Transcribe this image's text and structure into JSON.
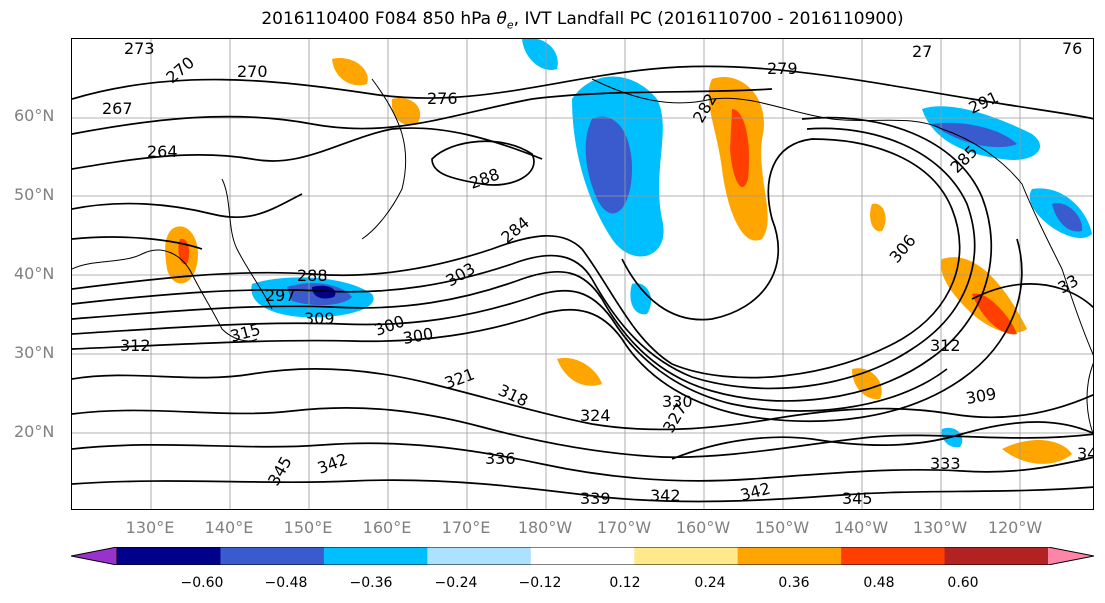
{
  "title": {
    "run": "2016110400 F084 850 hPa",
    "variable_symbol": "θ",
    "variable_subscript": "e",
    "rest": ", IVT Landfall PC (2016110700 - 2016110900)"
  },
  "lat_labels": [
    "60°N",
    "50°N",
    "40°N",
    "30°N",
    "20°N"
  ],
  "lon_labels": [
    "130°E",
    "140°E",
    "150°E",
    "160°E",
    "170°E",
    "180°W",
    "170°W",
    "160°W",
    "150°W",
    "140°W",
    "130°W",
    "120°W"
  ],
  "contour_labels": [
    "273",
    "270",
    "270",
    "267",
    "276",
    "264",
    "279",
    "282",
    "288",
    "291",
    "284",
    "288",
    "297",
    "306",
    "309",
    "300",
    "315",
    "312",
    "321",
    "318",
    "324",
    "330",
    "327",
    "336",
    "333",
    "339",
    "342",
    "342",
    "342",
    "345",
    "345",
    "309",
    "312",
    "27",
    "76",
    "34",
    "33",
    "285",
    "303",
    "300"
  ],
  "colorbar": {
    "ticks": [
      "−0.60",
      "−0.48",
      "−0.36",
      "−0.24",
      "−0.12",
      "0.12",
      "0.24",
      "0.36",
      "0.48",
      "0.60"
    ],
    "colors": [
      "#9932CC",
      "#00008B",
      "#3A5BCD",
      "#00BFFF",
      "#ADE2FF",
      "#FFFFFF",
      "#FFE98A",
      "#FFA500",
      "#FF3F00",
      "#B22222",
      "#FF85A8"
    ]
  }
}
